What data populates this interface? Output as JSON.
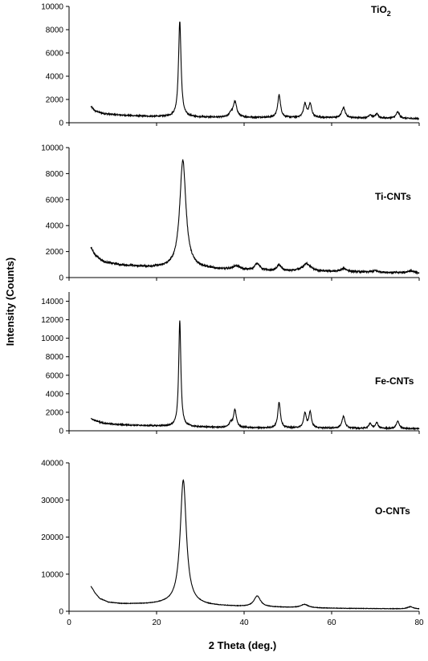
{
  "figure": {
    "ylabel": "Intensity (Counts)",
    "xlabel": "2 Theta (deg.)"
  },
  "chart_data": [
    {
      "type": "line",
      "panel_label": "TiO",
      "panel_label_sub": "2",
      "xlim": [
        0,
        80
      ],
      "ylim": [
        0,
        10000
      ],
      "yticks": [
        0,
        2000,
        4000,
        6000,
        8000,
        10000
      ],
      "baseline": [
        [
          5,
          1400
        ],
        [
          6,
          1000
        ],
        [
          8,
          780
        ],
        [
          12,
          650
        ],
        [
          18,
          550
        ],
        [
          22,
          520
        ],
        [
          30,
          480
        ],
        [
          35,
          460
        ],
        [
          45,
          450
        ],
        [
          60,
          430
        ],
        [
          70,
          400
        ],
        [
          80,
          350
        ]
      ],
      "peaks": [
        {
          "center": 25.3,
          "height": 8200,
          "width": 0.35
        },
        {
          "center": 37.9,
          "height": 1350,
          "width": 0.5
        },
        {
          "center": 36.9,
          "height": 300,
          "width": 0.4
        },
        {
          "center": 48.0,
          "height": 1950,
          "width": 0.38
        },
        {
          "center": 53.9,
          "height": 1150,
          "width": 0.4
        },
        {
          "center": 55.1,
          "height": 1150,
          "width": 0.4
        },
        {
          "center": 62.7,
          "height": 900,
          "width": 0.45
        },
        {
          "center": 68.8,
          "height": 280,
          "width": 0.4
        },
        {
          "center": 70.3,
          "height": 350,
          "width": 0.4
        },
        {
          "center": 75.1,
          "height": 550,
          "width": 0.45
        }
      ],
      "noise": 55
    },
    {
      "type": "line",
      "panel_label": "Ti-CNTs",
      "xlim": [
        0,
        80
      ],
      "ylim": [
        0,
        10000
      ],
      "yticks": [
        0,
        2000,
        4000,
        6000,
        8000,
        10000
      ],
      "baseline": [
        [
          5,
          2300
        ],
        [
          6,
          1700
        ],
        [
          8,
          1200
        ],
        [
          12,
          950
        ],
        [
          18,
          800
        ],
        [
          22,
          750
        ],
        [
          30,
          700
        ],
        [
          35,
          600
        ],
        [
          45,
          500
        ],
        [
          60,
          450
        ],
        [
          70,
          400
        ],
        [
          80,
          350
        ]
      ],
      "peaks": [
        {
          "center": 26.0,
          "height": 8300,
          "width": 0.85
        },
        {
          "center": 38.2,
          "height": 300,
          "width": 1.0
        },
        {
          "center": 43.0,
          "height": 550,
          "width": 0.7
        },
        {
          "center": 48.0,
          "height": 450,
          "width": 0.6
        },
        {
          "center": 54.3,
          "height": 600,
          "width": 1.1
        },
        {
          "center": 62.8,
          "height": 250,
          "width": 0.8
        },
        {
          "center": 70.0,
          "height": 120,
          "width": 0.8
        },
        {
          "center": 78.0,
          "height": 150,
          "width": 0.8
        }
      ],
      "noise": 70
    },
    {
      "type": "line",
      "panel_label": "Fe-CNTs",
      "xlim": [
        0,
        80
      ],
      "ylim": [
        0,
        15000
      ],
      "yticks": [
        0,
        2000,
        4000,
        6000,
        8000,
        10000,
        12000,
        14000
      ],
      "baseline": [
        [
          5,
          1300
        ],
        [
          6,
          1100
        ],
        [
          8,
          800
        ],
        [
          12,
          650
        ],
        [
          18,
          550
        ],
        [
          22,
          500
        ],
        [
          30,
          400
        ],
        [
          35,
          350
        ],
        [
          45,
          300
        ],
        [
          60,
          280
        ],
        [
          70,
          250
        ],
        [
          80,
          220
        ]
      ],
      "peaks": [
        {
          "center": 25.3,
          "height": 11400,
          "width": 0.3
        },
        {
          "center": 37.9,
          "height": 1900,
          "width": 0.4
        },
        {
          "center": 36.9,
          "height": 500,
          "width": 0.35
        },
        {
          "center": 48.0,
          "height": 2800,
          "width": 0.35
        },
        {
          "center": 53.9,
          "height": 1600,
          "width": 0.35
        },
        {
          "center": 55.1,
          "height": 1700,
          "width": 0.35
        },
        {
          "center": 62.7,
          "height": 1300,
          "width": 0.4
        },
        {
          "center": 68.8,
          "height": 550,
          "width": 0.35
        },
        {
          "center": 70.3,
          "height": 650,
          "width": 0.35
        },
        {
          "center": 75.1,
          "height": 800,
          "width": 0.4
        }
      ],
      "noise": 60
    },
    {
      "type": "line",
      "panel_label": "O-CNTs",
      "xlim": [
        0,
        80
      ],
      "ylim": [
        0,
        40000
      ],
      "yticks": [
        0,
        10000,
        20000,
        30000,
        40000
      ],
      "baseline": [
        [
          5,
          6700
        ],
        [
          6,
          4800
        ],
        [
          7,
          3400
        ],
        [
          9,
          2400
        ],
        [
          12,
          2000
        ],
        [
          18,
          1900
        ],
        [
          22,
          2000
        ],
        [
          28,
          1800
        ],
        [
          32,
          1500
        ],
        [
          40,
          1200
        ],
        [
          50,
          1000
        ],
        [
          60,
          800
        ],
        [
          70,
          700
        ],
        [
          80,
          600
        ]
      ],
      "peaks": [
        {
          "center": 26.1,
          "height": 33500,
          "width": 0.85
        },
        {
          "center": 43.0,
          "height": 2900,
          "width": 0.9
        },
        {
          "center": 53.8,
          "height": 900,
          "width": 1.0
        },
        {
          "center": 78.0,
          "height": 600,
          "width": 0.8
        }
      ],
      "noise": 60
    }
  ]
}
